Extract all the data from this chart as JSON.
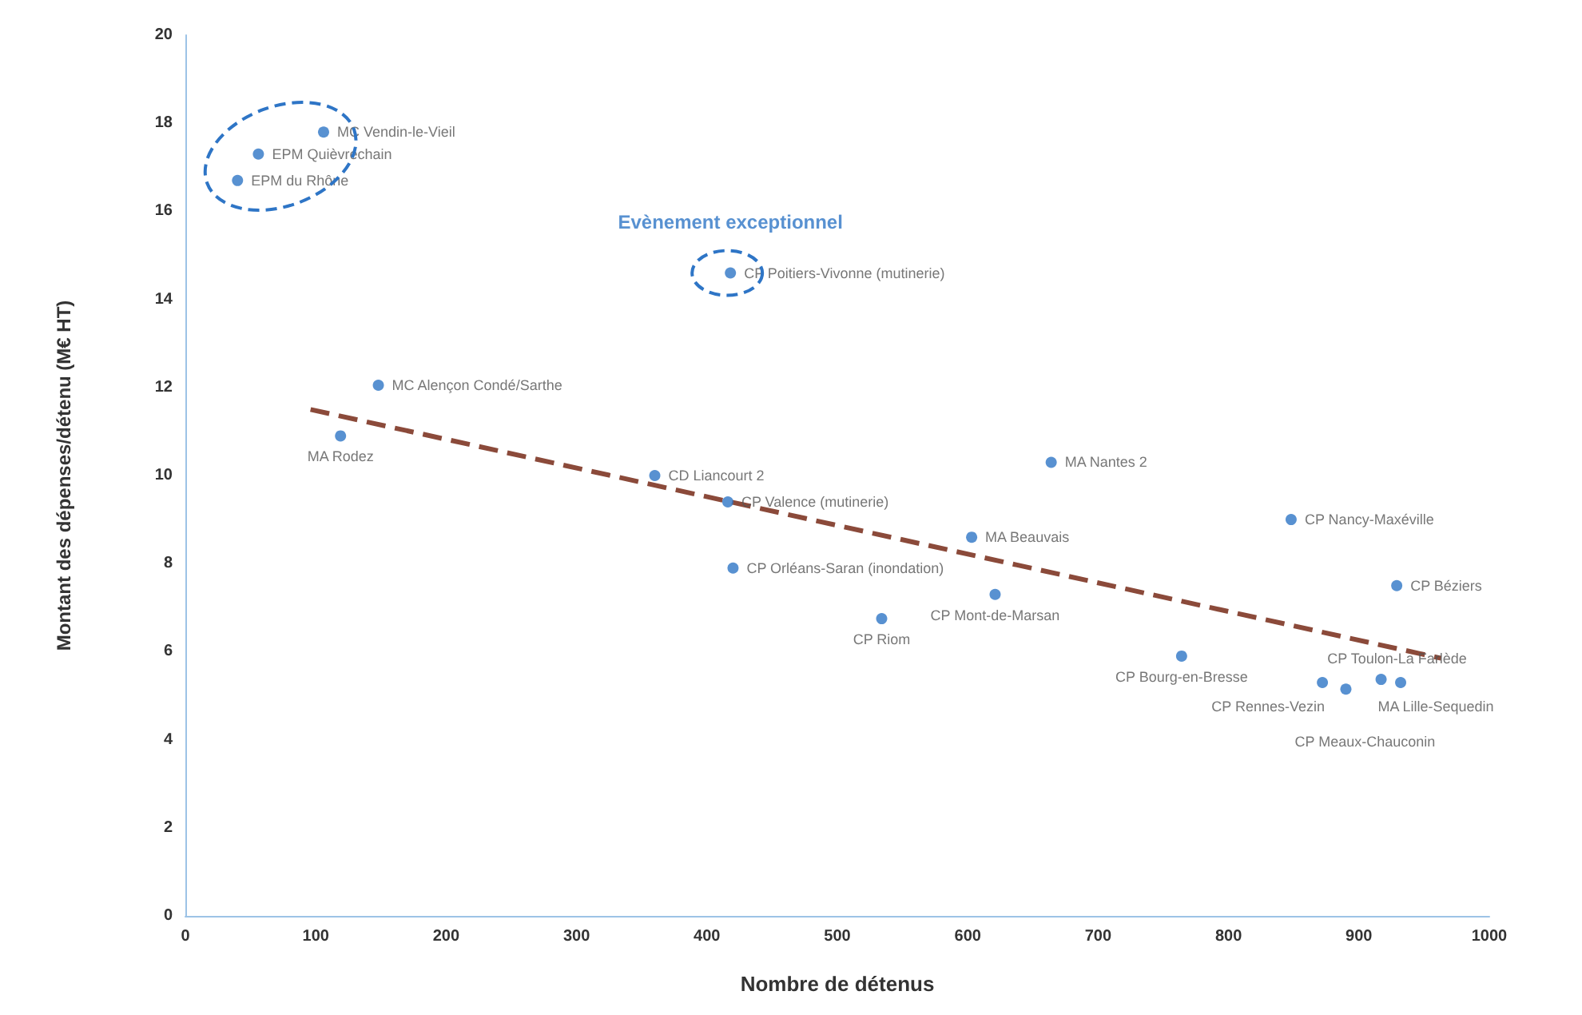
{
  "chart_data": {
    "type": "scatter",
    "xlabel": "Nombre de détenus",
    "ylabel": "Montant des dépenses/détenu (M€ HT)",
    "xlim": [
      0,
      1000
    ],
    "xticks": [
      0,
      100,
      200,
      300,
      400,
      500,
      600,
      700,
      800,
      900,
      1000
    ],
    "ylim": [
      0,
      20
    ],
    "yticks": [
      0,
      2,
      4,
      6,
      8,
      10,
      12,
      14,
      16,
      18,
      20
    ],
    "grid": false,
    "marker": "circle",
    "annotations": [
      {
        "text": "Evènement exceptionnel",
        "x": 418,
        "y": 14.6
      }
    ],
    "series": [
      {
        "color": "#2e75c6",
        "x": [
          106,
          56,
          40,
          418,
          148,
          119,
          360,
          416,
          664,
          603,
          420,
          621,
          534,
          848,
          929,
          764,
          872,
          890,
          917,
          932
        ],
        "values": [
          17.8,
          17.3,
          16.7,
          14.6,
          12.05,
          10.9,
          10.0,
          9.4,
          10.3,
          8.6,
          7.9,
          7.3,
          6.75,
          9.0,
          7.5,
          5.9,
          5.3,
          5.15,
          5.37,
          5.3
        ],
        "value_labels": [
          "MC Vendin-le-Vieil",
          "EPM Quièvrechain",
          "EPM du Rhône",
          "CP Poitiers-Vivonne (mutinerie)",
          "MC Alençon Condé/Sarthe",
          "MA Rodez",
          "CD Liancourt 2",
          "CP Valence (mutinerie)",
          "MA Nantes 2",
          "MA Beauvais",
          "CP Orléans-Saran (inondation)",
          "CP Mont-de-Marsan",
          "CP Riom",
          "CP Nancy-Maxéville",
          "CP Béziers",
          "CP Bourg-en-Bresse",
          "CP Rennes-Vezin",
          "CP Meaux-Chauconin",
          "CP Toulon-La Farlède",
          "MA Lille-Sequedin"
        ]
      },
      {
        "type": "line",
        "color": "#8b4a3a",
        "line_style": "dashed",
        "marker": "none",
        "x": [
          96,
          963
        ],
        "values": [
          11.5,
          5.85
        ]
      }
    ]
  }
}
